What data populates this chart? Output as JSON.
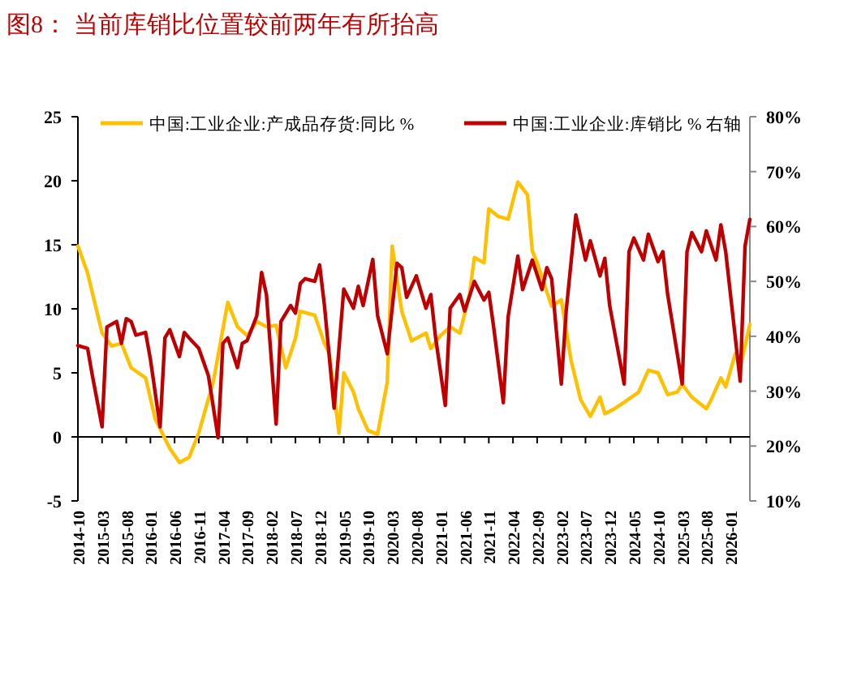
{
  "chart_data": {
    "type": "line",
    "title": "图8：  当前库销比位置较前两年有所抬高",
    "legend": "top",
    "marker": "none",
    "line_style": "solid",
    "xlim": [
      "2014-10",
      "2026-05"
    ],
    "xticks": [
      "2014-10",
      "2015-03",
      "2015-08",
      "2016-01",
      "2016-06",
      "2016-11",
      "2017-04",
      "2017-09",
      "2018-02",
      "2018-07",
      "2018-12",
      "2019-05",
      "2019-10",
      "2020-03",
      "2020-08",
      "2021-01",
      "2021-06",
      "2021-11",
      "2022-04",
      "2022-09",
      "2023-02",
      "2023-07",
      "2023-12",
      "2024-05",
      "2024-10",
      "2025-03",
      "2025-08",
      "2026-01"
    ],
    "ylim": [
      -5,
      25
    ],
    "yticks": [
      -5,
      0,
      5,
      10,
      15,
      20,
      25
    ],
    "y2lim": [
      10,
      80
    ],
    "y2ticks": [
      {
        "value": 10,
        "label": "10%"
      },
      {
        "value": 20,
        "label": "20%"
      },
      {
        "value": 30,
        "label": "30%"
      },
      {
        "value": 40,
        "label": "40%"
      },
      {
        "value": 50,
        "label": "50%"
      },
      {
        "value": 60,
        "label": "60%"
      },
      {
        "value": 70,
        "label": "70%"
      },
      {
        "value": 80,
        "label": "80%"
      }
    ],
    "series": [
      {
        "name": "中国:工业企业:产成品存货:同比 %",
        "color": "#ffc000",
        "x": [
          "2014-10",
          "2014-12",
          "2015-03",
          "2015-05",
          "2015-07",
          "2015-09",
          "2015-12",
          "2016-02",
          "2016-05",
          "2016-07",
          "2016-09",
          "2016-11",
          "2017-02",
          "2017-05",
          "2017-07",
          "2017-09",
          "2017-11",
          "2018-01",
          "2018-03",
          "2018-05",
          "2018-07",
          "2018-08",
          "2018-11",
          "2019-01",
          "2019-02",
          "2019-04",
          "2019-05",
          "2019-07",
          "2019-08",
          "2019-10",
          "2019-12",
          "2020-02",
          "2020-03",
          "2020-05",
          "2020-07",
          "2020-10",
          "2020-11",
          "2021-01",
          "2021-03",
          "2021-05",
          "2021-07",
          "2021-08",
          "2021-10",
          "2021-11",
          "2022-01",
          "2022-03",
          "2022-05",
          "2022-07",
          "2022-08",
          "2022-09",
          "2022-12",
          "2023-02",
          "2023-04",
          "2023-06",
          "2023-08",
          "2023-10",
          "2023-11",
          "2024-01",
          "2024-03",
          "2024-06",
          "2024-08",
          "2024-10",
          "2024-12",
          "2025-02",
          "2025-03",
          "2025-05",
          "2025-08",
          "2025-09",
          "2025-11",
          "2025-12",
          "2026-02",
          "2026-03",
          "2026-05"
        ],
        "values": [
          14.9,
          12.8,
          8.1,
          7.1,
          7.3,
          5.4,
          4.6,
          1.4,
          -0.9,
          -2.0,
          -1.6,
          0.3,
          4.3,
          10.5,
          8.6,
          7.9,
          9.0,
          8.6,
          8.7,
          5.4,
          7.7,
          9.8,
          9.5,
          7.3,
          6.5,
          0.3,
          5.0,
          3.5,
          2.2,
          0.5,
          0.2,
          4.3,
          14.9,
          9.8,
          7.5,
          8.1,
          6.9,
          7.9,
          8.6,
          8.1,
          11.1,
          14.0,
          13.6,
          17.8,
          17.2,
          17.0,
          19.9,
          18.9,
          14.5,
          13.6,
          10.2,
          10.7,
          6.0,
          2.9,
          1.6,
          3.1,
          1.8,
          2.2,
          2.7,
          3.5,
          5.2,
          5.0,
          3.3,
          3.5,
          4.1,
          3.1,
          2.2,
          2.9,
          4.6,
          3.9,
          6.5,
          5.4,
          8.8
        ]
      },
      {
        "name": "中国:工业企业:库销比 % 右轴",
        "color": "#c00000",
        "axis": "y2",
        "x": [
          "2014-10",
          "2014-12",
          "2015-01",
          "2015-03",
          "2015-04",
          "2015-06",
          "2015-07",
          "2015-08",
          "2015-09",
          "2015-10",
          "2015-12",
          "2016-01",
          "2016-03",
          "2016-04",
          "2016-05",
          "2016-07",
          "2016-08",
          "2016-09",
          "2016-11",
          "2017-01",
          "2017-03",
          "2017-04",
          "2017-05",
          "2017-07",
          "2017-08",
          "2017-09",
          "2017-11",
          "2017-12",
          "2018-01",
          "2018-03",
          "2018-04",
          "2018-06",
          "2018-07",
          "2018-08",
          "2018-09",
          "2018-11",
          "2018-12",
          "2019-01",
          "2019-03",
          "2019-05",
          "2019-07",
          "2019-08",
          "2019-09",
          "2019-11",
          "2019-12",
          "2020-02",
          "2020-04",
          "2020-05",
          "2020-06",
          "2020-08",
          "2020-10",
          "2020-11",
          "2020-12",
          "2021-02",
          "2021-03",
          "2021-05",
          "2021-06",
          "2021-08",
          "2021-10",
          "2021-11",
          "2021-12",
          "2022-02",
          "2022-03",
          "2022-05",
          "2022-06",
          "2022-08",
          "2022-10",
          "2022-11",
          "2022-12",
          "2023-01",
          "2023-02",
          "2023-03",
          "2023-05",
          "2023-07",
          "2023-08",
          "2023-10",
          "2023-11",
          "2023-12",
          "2024-03",
          "2024-04",
          "2024-05",
          "2024-07",
          "2024-08",
          "2024-10",
          "2024-11",
          "2024-12",
          "2025-03",
          "2025-04",
          "2025-05",
          "2025-07",
          "2025-08",
          "2025-10",
          "2025-11",
          "2025-12",
          "2026-03",
          "2026-04",
          "2026-05"
        ],
        "values": [
          38.3,
          37.8,
          32.8,
          23.5,
          41.7,
          42.7,
          38.7,
          43.2,
          42.7,
          40.2,
          40.7,
          35.8,
          23.5,
          39.7,
          41.2,
          36.3,
          40.7,
          39.7,
          37.8,
          32.8,
          21.5,
          38.7,
          39.7,
          34.3,
          38.7,
          39.2,
          43.7,
          51.6,
          47.6,
          24.0,
          42.7,
          45.6,
          44.2,
          49.6,
          50.5,
          50.0,
          53.0,
          45.6,
          26.9,
          48.6,
          45.1,
          49.1,
          45.6,
          54.0,
          43.7,
          36.8,
          53.3,
          52.5,
          47.1,
          51.0,
          45.1,
          47.6,
          39.7,
          27.4,
          45.1,
          47.6,
          44.6,
          50.0,
          46.6,
          48.0,
          41.7,
          27.9,
          43.6,
          54.6,
          48.5,
          53.9,
          48.5,
          52.5,
          50.5,
          40.7,
          31.3,
          44.6,
          62.1,
          53.9,
          57.4,
          51.0,
          54.2,
          45.6,
          31.3,
          55.4,
          57.9,
          53.9,
          58.6,
          53.6,
          55.4,
          47.6,
          31.3,
          55.4,
          58.9,
          55.4,
          59.2,
          53.9,
          60.3,
          55.4,
          31.8,
          56.4,
          61.3
        ]
      }
    ]
  }
}
